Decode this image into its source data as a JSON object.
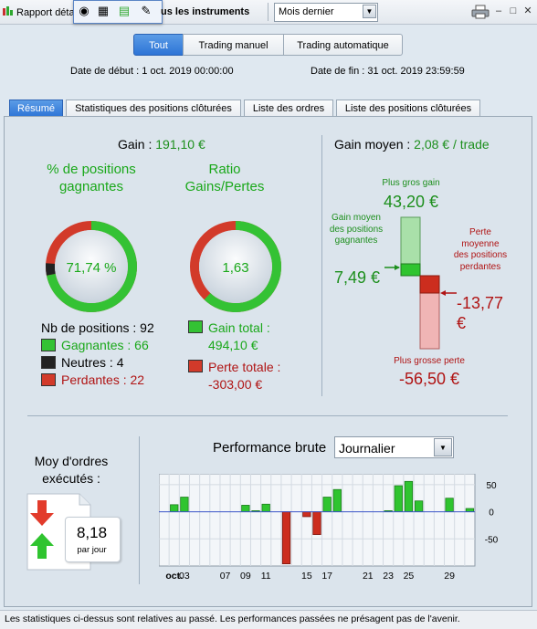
{
  "toolbar": {
    "report_label": "Rapport détaillé",
    "instruments_label": "us les instruments",
    "period_value": "Mois dernier",
    "icons": [
      "report-icon",
      "ticket-icon",
      "grid-icon",
      "chart-icon",
      "tools-icon",
      "print-icon"
    ]
  },
  "filter": {
    "tabs": [
      "Tout",
      "Trading manuel",
      "Trading automatique"
    ],
    "start_label": "Date de début : ",
    "start_value": "1 oct. 2019 00:00:00",
    "end_label": "Date de fin : ",
    "end_value": "31 oct. 2019 23:59:59"
  },
  "tabs": [
    "Résumé",
    "Statistiques des positions clôturées",
    "Liste des ordres",
    "Liste des positions clôturées"
  ],
  "summary": {
    "gain_label": "Gain : ",
    "gain_value": "191,10 €",
    "win_pct_title": "% de positions gagnantes",
    "win_pct_value": "71,74 %",
    "ratio_title": "Ratio Gains/Pertes",
    "ratio_value": "1,63",
    "positions_label": "Nb de positions : 92",
    "winners_label": "Gagnantes : 66",
    "neutral_label": "Neutres : 4",
    "losers_label": "Perdantes : 22",
    "total_gain_label": "Gain total :",
    "total_gain_value": "494,10 €",
    "total_loss_label": "Perte totale :",
    "total_loss_value": "-303,00 €",
    "avg_gain_label": "Gain moyen : ",
    "avg_gain_value": "2,08 € / trade",
    "biggest_gain_label": "Plus gros gain",
    "biggest_gain_value": "43,20 €",
    "avg_win_label": "Gain moyen des positions gagnantes",
    "avg_win_value": "7,49 €",
    "avg_loss_label": "Perte moyenne des positions perdantes",
    "avg_loss_value": "-13,77 €",
    "biggest_loss_label": "Plus grosse perte",
    "biggest_loss_value": "-56,50 €",
    "win_fraction": 0.7174,
    "neutral_fraction": 0.0435,
    "ratio_fraction": 0.62
  },
  "orders": {
    "title": "Moy d'ordres exécutés :",
    "value": "8,18",
    "unit": "par jour"
  },
  "performance": {
    "title": "Performance brute",
    "period_value": "Journalier"
  },
  "chart_data": {
    "type": "bar",
    "x_tick_labels": [
      "oct.",
      "03",
      "07",
      "09",
      "11",
      "15",
      "17",
      "21",
      "23",
      "25",
      "29"
    ],
    "y_tick_labels": [
      "50",
      "0",
      "-50"
    ],
    "ylim": [
      -100,
      70
    ],
    "days": [
      1,
      2,
      3,
      4,
      5,
      6,
      7,
      8,
      9,
      10,
      11,
      12,
      13,
      14,
      15,
      16,
      17,
      18,
      19,
      20,
      21,
      22,
      23,
      24,
      25,
      26,
      27,
      28,
      29,
      30,
      31
    ],
    "values": [
      null,
      13,
      27,
      null,
      null,
      null,
      null,
      null,
      12,
      2,
      14,
      null,
      -96,
      null,
      -9,
      -42,
      27,
      41,
      null,
      null,
      null,
      null,
      2,
      48,
      56,
      20,
      null,
      null,
      25,
      null,
      6
    ],
    "colors": {
      "positive": "#2fc42f",
      "negative": "#cc2d1e"
    }
  },
  "footer": {
    "text": "Les statistiques ci-dessus sont relatives au passé. Les performances passées ne présagent pas de l'avenir."
  }
}
